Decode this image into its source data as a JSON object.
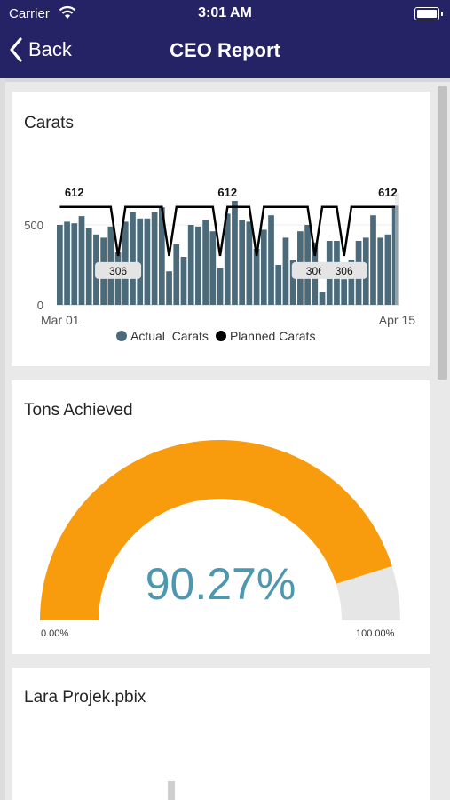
{
  "status_bar": {
    "carrier": "Carrier",
    "time": "3:01 AM"
  },
  "nav": {
    "back_label": "Back",
    "title": "CEO Report"
  },
  "cards": {
    "carats": {
      "title": "Carats",
      "legend_actual": "Actual  Carats",
      "legend_planned": "Planned Carats",
      "y_ticks": [
        "0",
        "500"
      ],
      "x_start": "Mar 01",
      "x_end": "Apr 15",
      "labels_612": [
        "612",
        "612",
        "612"
      ],
      "labels_306": [
        "306",
        "306",
        "306"
      ]
    },
    "tons": {
      "title": "Tons Achieved",
      "value": "90.27%",
      "min": "0.00%",
      "max": "100.00%"
    },
    "lara": {
      "title": "Lara Projek.pbix"
    }
  },
  "colors": {
    "header": "#252266",
    "bars": "#4b6b7b",
    "gauge": "#f89b0c",
    "gauge_bg": "#e6e6e6",
    "value": "#4e97b0"
  },
  "chart_data": {
    "type": "bar",
    "title": "Carats",
    "x_range": [
      "Mar 01",
      "Apr 15"
    ],
    "ylim": [
      0,
      700
    ],
    "series": [
      {
        "name": "Actual  Carats",
        "values": [
          500,
          520,
          510,
          555,
          480,
          440,
          420,
          490,
          330,
          520,
          580,
          540,
          540,
          580,
          610,
          210,
          380,
          300,
          500,
          490,
          530,
          460,
          230,
          570,
          650,
          530,
          520,
          350,
          470,
          560,
          250,
          420,
          280,
          460,
          500,
          390,
          80,
          400,
          400,
          160,
          280,
          400,
          420,
          560,
          420,
          440,
          620
        ]
      },
      {
        "name": "Planned Carats",
        "values": [
          612,
          612,
          612,
          612,
          612,
          612,
          612,
          612,
          306,
          612,
          612,
          612,
          612,
          612,
          612,
          306,
          612,
          612,
          612,
          612,
          612,
          612,
          306,
          612,
          612,
          612,
          612,
          306,
          612,
          612,
          612,
          612,
          612,
          612,
          612,
          306,
          612,
          612,
          612,
          306,
          612,
          612,
          612,
          612,
          612,
          612,
          612
        ]
      }
    ],
    "data_labels": {
      "max": 612,
      "min": 306
    },
    "legend": "bottom"
  },
  "gauge_data": {
    "value": 90.27,
    "min": 0,
    "max": 100
  }
}
